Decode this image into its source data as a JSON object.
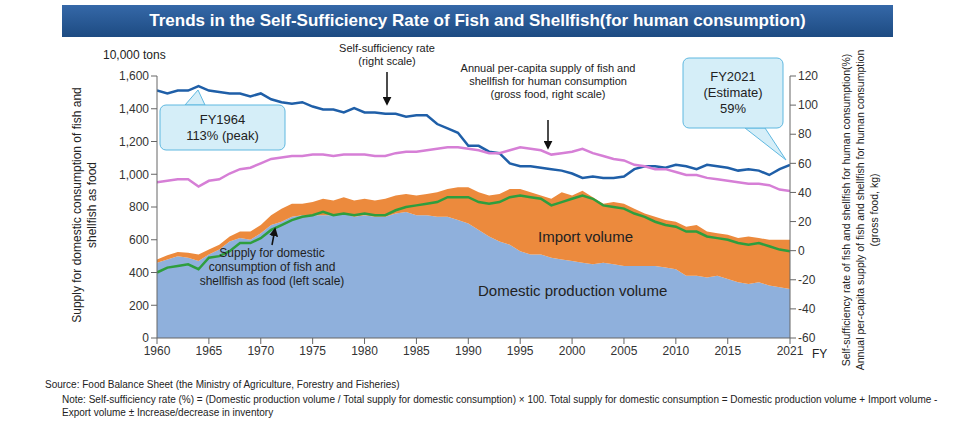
{
  "chart_data": {
    "type": "combo",
    "title": "Trends in the Self-Sufficiency Rate of Fish and Shellfish(for human consumption)",
    "x": [
      1960,
      1961,
      1962,
      1963,
      1964,
      1965,
      1966,
      1967,
      1968,
      1969,
      1970,
      1971,
      1972,
      1973,
      1974,
      1975,
      1976,
      1977,
      1978,
      1979,
      1980,
      1981,
      1982,
      1983,
      1984,
      1985,
      1986,
      1987,
      1988,
      1989,
      1990,
      1991,
      1992,
      1993,
      1994,
      1995,
      1996,
      1997,
      1998,
      1999,
      2000,
      2001,
      2002,
      2003,
      2004,
      2005,
      2006,
      2007,
      2008,
      2009,
      2010,
      2011,
      2012,
      2013,
      2014,
      2015,
      2016,
      2017,
      2018,
      2019,
      2020,
      2021
    ],
    "xlim": [
      1960,
      2021
    ],
    "xticks": [
      1960,
      1965,
      1970,
      1975,
      1980,
      1985,
      1990,
      1995,
      2000,
      2005,
      2010,
      2015,
      2021
    ],
    "x_label": "FY",
    "y_unit": "10,000 tons",
    "y_label": "Supply for domestic consumption of fish and shellfish as food",
    "ylim": [
      0,
      1600
    ],
    "yticks": [
      0,
      200,
      400,
      600,
      800,
      {
        "value": 1000,
        "label": "1,000"
      },
      {
        "value": 1200,
        "label": "1,200"
      },
      {
        "value": 1400,
        "label": "1,400"
      },
      {
        "value": 1600,
        "label": "1,600"
      }
    ],
    "y2_label": [
      "Self-sufficiency rate of fish and shellfish for human consumption(%)",
      "Annual per-capita supply of fish and shellfish for human consumption",
      "(gross food, kg)"
    ],
    "y2lim": [
      -60,
      120
    ],
    "y2ticks": [
      -60,
      -40,
      -20,
      0,
      20,
      40,
      60,
      80,
      100,
      120
    ],
    "stacked": true,
    "series": [
      {
        "name": "Domestic production volume",
        "type": "area",
        "color": "#8fb0dc",
        "values": [
          460,
          480,
          500,
          490,
          470,
          510,
          540,
          590,
          610,
          600,
          640,
          690,
          710,
          740,
          750,
          750,
          750,
          750,
          760,
          740,
          750,
          740,
          740,
          760,
          770,
          750,
          750,
          740,
          740,
          720,
          700,
          660,
          620,
          590,
          570,
          530,
          510,
          510,
          490,
          480,
          470,
          460,
          450,
          460,
          450,
          440,
          440,
          440,
          440,
          430,
          420,
          380,
          380,
          370,
          380,
          360,
          340,
          330,
          340,
          320,
          310,
          300
        ]
      },
      {
        "name": "Import volume",
        "type": "area",
        "color": "#ec8a3d",
        "values": [
          20,
          25,
          25,
          30,
          40,
          30,
          30,
          30,
          40,
          50,
          50,
          60,
          80,
          80,
          70,
          80,
          100,
          90,
          100,
          100,
          100,
          100,
          110,
          110,
          110,
          120,
          130,
          150,
          170,
          200,
          220,
          230,
          250,
          290,
          340,
          380,
          380,
          360,
          360,
          410,
          400,
          440,
          410,
          360,
          380,
          380,
          350,
          320,
          300,
          290,
          290,
          300,
          310,
          280,
          260,
          270,
          270,
          290,
          270,
          280,
          290,
          300
        ]
      },
      {
        "name": "Supply for domestic consumption of fish and shellfish as food (left scale)",
        "type": "line",
        "color": "#2e9e3e",
        "values": [
          400,
          430,
          440,
          450,
          420,
          490,
          500,
          530,
          580,
          580,
          610,
          660,
          690,
          720,
          740,
          750,
          770,
          750,
          760,
          750,
          760,
          750,
          750,
          780,
          800,
          810,
          820,
          830,
          860,
          860,
          860,
          830,
          820,
          830,
          860,
          870,
          860,
          850,
          810,
          830,
          850,
          870,
          850,
          810,
          800,
          790,
          760,
          740,
          710,
          690,
          680,
          650,
          650,
          620,
          610,
          600,
          580,
          570,
          580,
          560,
          540,
          530
        ]
      },
      {
        "name": "Self-sufficiency rate (right scale)",
        "type": "line",
        "axis": "y2",
        "color": "#1f5fa8",
        "values": [
          110,
          108,
          110,
          110,
          113,
          110,
          109,
          108,
          108,
          106,
          108,
          104,
          102,
          101,
          102,
          99,
          97,
          97,
          95,
          98,
          95,
          95,
          94,
          94,
          92,
          93,
          93,
          87,
          84,
          81,
          72,
          72,
          68,
          67,
          60,
          58,
          58,
          57,
          56,
          55,
          53,
          50,
          51,
          50,
          50,
          51,
          56,
          58,
          58,
          57,
          59,
          58,
          56,
          59,
          58,
          57,
          55,
          56,
          55,
          52,
          56,
          59
        ]
      },
      {
        "name": "Annual per-capita supply of fish and shellfish for human consumption (gross food, right scale)",
        "type": "line",
        "axis": "y2",
        "color": "#d67fd6",
        "values": [
          47,
          48,
          49,
          49,
          44,
          48,
          49,
          53,
          56,
          57,
          60,
          63,
          64,
          65,
          65,
          66,
          66,
          65,
          66,
          66,
          66,
          65,
          65,
          67,
          68,
          68,
          69,
          70,
          71,
          71,
          70,
          69,
          67,
          67,
          69,
          71,
          70,
          69,
          66,
          67,
          68,
          70,
          67,
          65,
          63,
          62,
          59,
          58,
          56,
          56,
          54,
          52,
          52,
          50,
          49,
          48,
          47,
          46,
          46,
          45,
          42,
          41
        ]
      }
    ],
    "annotations": [
      [
        "FY1964",
        "113% (peak)"
      ],
      [
        "FY2021",
        "(Estimate)",
        "59%"
      ]
    ],
    "source": "Source: Food Balance Sheet (the Ministry of Agriculture, Forestry and Fisheries)",
    "note": "Note: Self-sufficiency rate (%) = (Domestic production volume / Total supply for domestic consumption) × 100. Total supply for domestic consumption = Domestic production volume + Import volume - Export volume ± Increase/decrease in inventory"
  }
}
